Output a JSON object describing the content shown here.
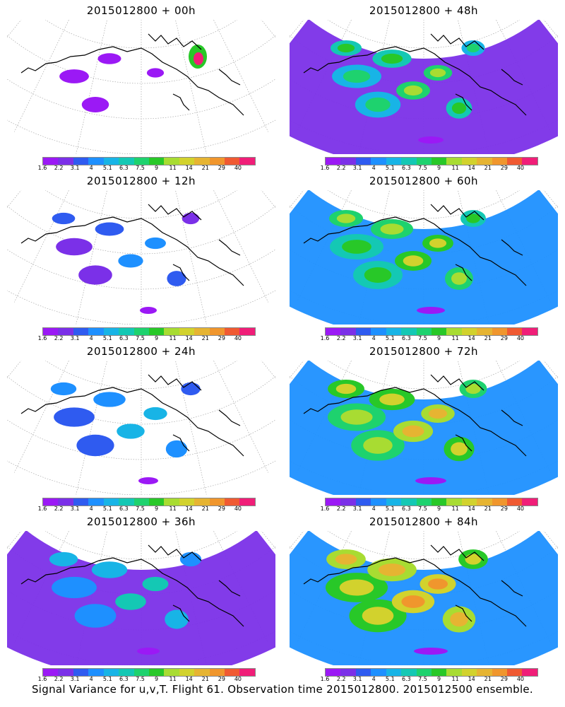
{
  "panels": [
    {
      "title": "2015012800  + 00h",
      "intensity": 0
    },
    {
      "title": "2015012800  + 48h",
      "intensity": 4
    },
    {
      "title": "2015012800  + 12h",
      "intensity": 1
    },
    {
      "title": "2015012800  + 60h",
      "intensity": 5
    },
    {
      "title": "2015012800  + 24h",
      "intensity": 2
    },
    {
      "title": "2015012800  + 72h",
      "intensity": 6
    },
    {
      "title": "2015012800  + 36h",
      "intensity": 3
    },
    {
      "title": "2015012800  + 84h",
      "intensity": 7
    }
  ],
  "colorbar": {
    "labels": [
      "1.6",
      "2.2",
      "3.1",
      "4",
      "5.1",
      "6.3",
      "7.5",
      "9",
      "11",
      "14",
      "21",
      "29",
      "40"
    ],
    "colors": [
      "#9b19f5",
      "#7b30e8",
      "#2f5bf0",
      "#1e90ff",
      "#18b4e6",
      "#14c8b4",
      "#1ed26e",
      "#28c828",
      "#a8dc32",
      "#d2d22d",
      "#e6b432",
      "#f0962d",
      "#f05a32",
      "#f01e78"
    ]
  },
  "caption": "Signal Variance for u,v,T. Flight 61. Observation time 2015012800. 2015012500 ensemble."
}
